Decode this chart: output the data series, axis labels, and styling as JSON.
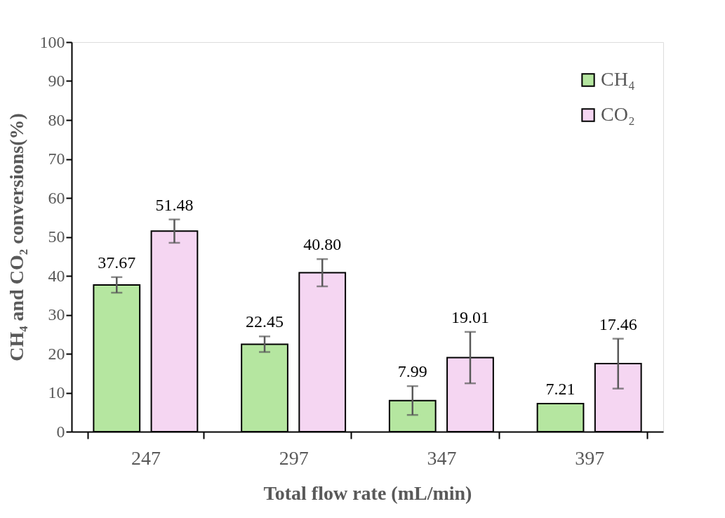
{
  "chart_data": {
    "type": "bar",
    "xlabel": "Total flow rate (mL/min)",
    "ylabel": "CH₄ and CO₂ conversions(%)",
    "categories": [
      "247",
      "297",
      "347",
      "397"
    ],
    "series": [
      {
        "name": "CH₄",
        "color": "#b5e6a0",
        "values": [
          37.67,
          22.45,
          7.99,
          7.21
        ],
        "errors": [
          2.0,
          2.0,
          3.7,
          null
        ],
        "value_labels": [
          "37.67",
          "22.45",
          "7.99",
          "7.21"
        ]
      },
      {
        "name": "CO₂",
        "color": "#f5d6f2",
        "values": [
          51.48,
          40.8,
          19.01,
          17.46
        ],
        "errors": [
          3.0,
          3.5,
          6.6,
          6.4
        ],
        "value_labels": [
          "51.48",
          "40.80",
          "19.01",
          "17.46"
        ]
      }
    ],
    "ylim": [
      0,
      100
    ],
    "yticks": [
      0,
      10,
      20,
      30,
      40,
      50,
      60,
      70,
      80,
      90,
      100
    ],
    "grid": false,
    "legend": "top right"
  }
}
